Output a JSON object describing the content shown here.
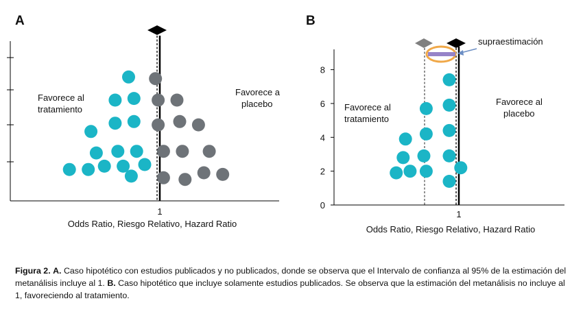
{
  "figure_caption": {
    "figure_label": "Figura 2.",
    "a_label": "A.",
    "a_text": "Caso hipotético con estudios publicados y no publicados, donde se observa que el Intervalo de confianza al 95% de la estimación del metanálisis incluye al 1.",
    "b_label": "B.",
    "b_text": "Caso hipotético que incluye solamente estudios publicados. Se observa que la estimación del metanálisis no incluye al 1, favoreciendo al tratamiento."
  },
  "colors": {
    "published": "#1BB5C6",
    "unpublished": "#6E7378",
    "pooled_marker": "#000000",
    "biased_marker": "#808080",
    "highlight_ellipse": "#F0A848",
    "shift_bar": "#9683C8",
    "arrow": "#6C8EC4",
    "axis": "#000000"
  },
  "chart_data": [
    {
      "panel": "A",
      "type": "scatter",
      "xlabel": "Odds Ratio, Riesgo Relativo, Hazard  Ratio",
      "x_tick_label": "1",
      "region_left": [
        "Favorece al",
        "tratamiento"
      ],
      "region_right": [
        "Favorece a",
        "placebo"
      ],
      "y_tick_labels": [],
      "xlim": [
        0,
        10
      ],
      "ylim": [
        0,
        10
      ],
      "null_line_x": 5.05,
      "pooled_estimate_x": 4.92,
      "series": [
        {
          "name": "",
          "role": "published",
          "points": [
            [
              4.4,
              7.5
            ],
            [
              3.9,
              6.1
            ],
            [
              4.6,
              6.2
            ],
            [
              3.9,
              4.7
            ],
            [
              4.6,
              4.8
            ],
            [
              3.0,
              4.2
            ],
            [
              3.2,
              2.9
            ],
            [
              4.0,
              3.0
            ],
            [
              4.7,
              3.0
            ],
            [
              2.9,
              1.9
            ],
            [
              3.5,
              2.1
            ],
            [
              4.2,
              2.1
            ],
            [
              2.2,
              1.9
            ],
            [
              5.0,
              2.2
            ],
            [
              4.5,
              1.5
            ]
          ]
        },
        {
          "name": "",
          "role": "unpublished",
          "points": [
            [
              5.4,
              7.4
            ],
            [
              5.5,
              6.1
            ],
            [
              6.2,
              6.1
            ],
            [
              5.5,
              4.6
            ],
            [
              6.3,
              4.8
            ],
            [
              7.0,
              4.6
            ],
            [
              5.7,
              3.0
            ],
            [
              6.4,
              3.0
            ],
            [
              7.4,
              3.0
            ],
            [
              5.7,
              1.4
            ],
            [
              6.5,
              1.3
            ],
            [
              7.2,
              1.7
            ],
            [
              7.9,
              1.6
            ]
          ]
        }
      ]
    },
    {
      "panel": "B",
      "type": "scatter",
      "xlabel": "Odds Ratio, Riesgo Relativo, Hazard Ratio",
      "x_tick_label": "1",
      "y_ticks": [
        0,
        2,
        4,
        6,
        8
      ],
      "ylim": [
        0,
        9.2
      ],
      "xlim": [
        0,
        10
      ],
      "region_left": [
        "Favorece al",
        "tratamiento"
      ],
      "region_right": [
        "Favorece al",
        "placebo"
      ],
      "annotation": "supraestimación",
      "null_line_x": 5.9,
      "biased_estimate_x": 4.05,
      "true_estimate_x": 5.8,
      "series": [
        {
          "name": "",
          "role": "published",
          "points": [
            [
              5.0,
              7.4
            ],
            [
              4.0,
              5.7
            ],
            [
              5.0,
              5.9
            ],
            [
              3.1,
              3.9
            ],
            [
              4.0,
              4.2
            ],
            [
              5.0,
              4.4
            ],
            [
              3.0,
              2.8
            ],
            [
              3.9,
              2.9
            ],
            [
              5.0,
              2.9
            ],
            [
              2.7,
              1.9
            ],
            [
              3.3,
              2.0
            ],
            [
              4.0,
              2.0
            ],
            [
              5.5,
              2.2
            ],
            [
              5.0,
              1.4
            ]
          ]
        }
      ]
    }
  ]
}
